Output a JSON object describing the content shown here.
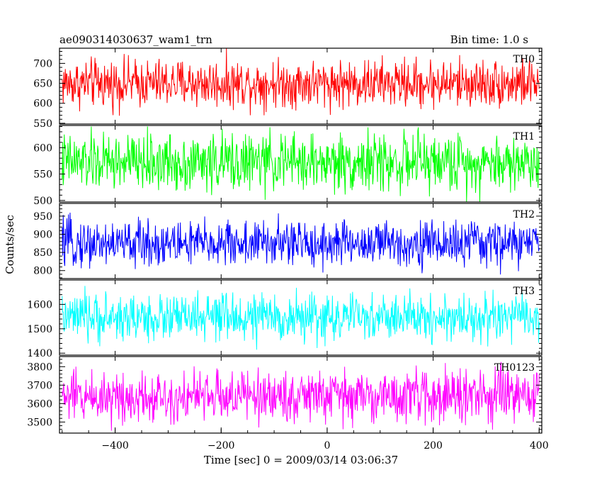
{
  "chart_data": {
    "type": "line",
    "title": "ae090314030637_wam1_trn",
    "subtitle": "Bin time: 1.0 s",
    "xlabel": "Time [sec] 0 = 2009/03/14 03:06:37",
    "ylabel": "Counts/sec",
    "xlim": [
      -505,
      405
    ],
    "x_ticks": [
      -400,
      -200,
      0,
      200,
      400
    ],
    "x_tick_labels": [
      "−400",
      "−200",
      "0",
      "200",
      "400"
    ],
    "bin_time_s": 1.0,
    "grid": false,
    "panels": [
      {
        "label": "TH0",
        "color": "#ff0000",
        "ylim": [
          548,
          738
        ],
        "y_ticks": [
          550,
          600,
          650,
          700
        ],
        "y_tick_labels": [
          "550",
          "600",
          "650",
          "700"
        ],
        "y_minor_step": 10,
        "series": [
          {
            "name": "TH0",
            "x_range": [
              -500,
              400
            ],
            "mean": 650,
            "spread": 30,
            "min": 560,
            "max": 740
          }
        ]
      },
      {
        "label": "TH1",
        "color": "#00ff00",
        "ylim": [
          497,
          642
        ],
        "y_ticks": [
          500,
          550,
          600
        ],
        "y_tick_labels": [
          "500",
          "550",
          "600"
        ],
        "y_minor_step": 10,
        "series": [
          {
            "name": "TH1",
            "x_range": [
              -500,
              400
            ],
            "mean": 572,
            "spread": 27,
            "min": 495,
            "max": 640
          }
        ]
      },
      {
        "label": "TH2",
        "color": "#0000ff",
        "ylim": [
          778,
          985
        ],
        "y_ticks": [
          800,
          850,
          900,
          950
        ],
        "y_tick_labels": [
          "800",
          "850",
          "900",
          "950"
        ],
        "y_minor_step": 10,
        "series": [
          {
            "name": "TH2",
            "x_range": [
              -500,
              400
            ],
            "mean": 875,
            "spread": 32,
            "min": 780,
            "max": 985
          }
        ]
      },
      {
        "label": "TH3",
        "color": "#00ffff",
        "ylim": [
          1392,
          1700
        ],
        "y_ticks": [
          1400,
          1500,
          1600
        ],
        "y_tick_labels": [
          "1400",
          "1500",
          "1600"
        ],
        "y_minor_step": 20,
        "series": [
          {
            "name": "TH3",
            "x_range": [
              -500,
              400
            ],
            "mean": 1545,
            "spread": 48,
            "min": 1400,
            "max": 1700
          }
        ]
      },
      {
        "label": "TH0123",
        "color": "#ff00ff",
        "ylim": [
          3440,
          3855
        ],
        "y_ticks": [
          3500,
          3600,
          3700,
          3800
        ],
        "y_tick_labels": [
          "3500",
          "3600",
          "3700",
          "3800"
        ],
        "y_minor_step": 20,
        "series": [
          {
            "name": "TH0123",
            "x_range": [
              -500,
              400
            ],
            "mean": 3640,
            "spread": 70,
            "min": 3440,
            "max": 3855
          }
        ]
      }
    ]
  }
}
